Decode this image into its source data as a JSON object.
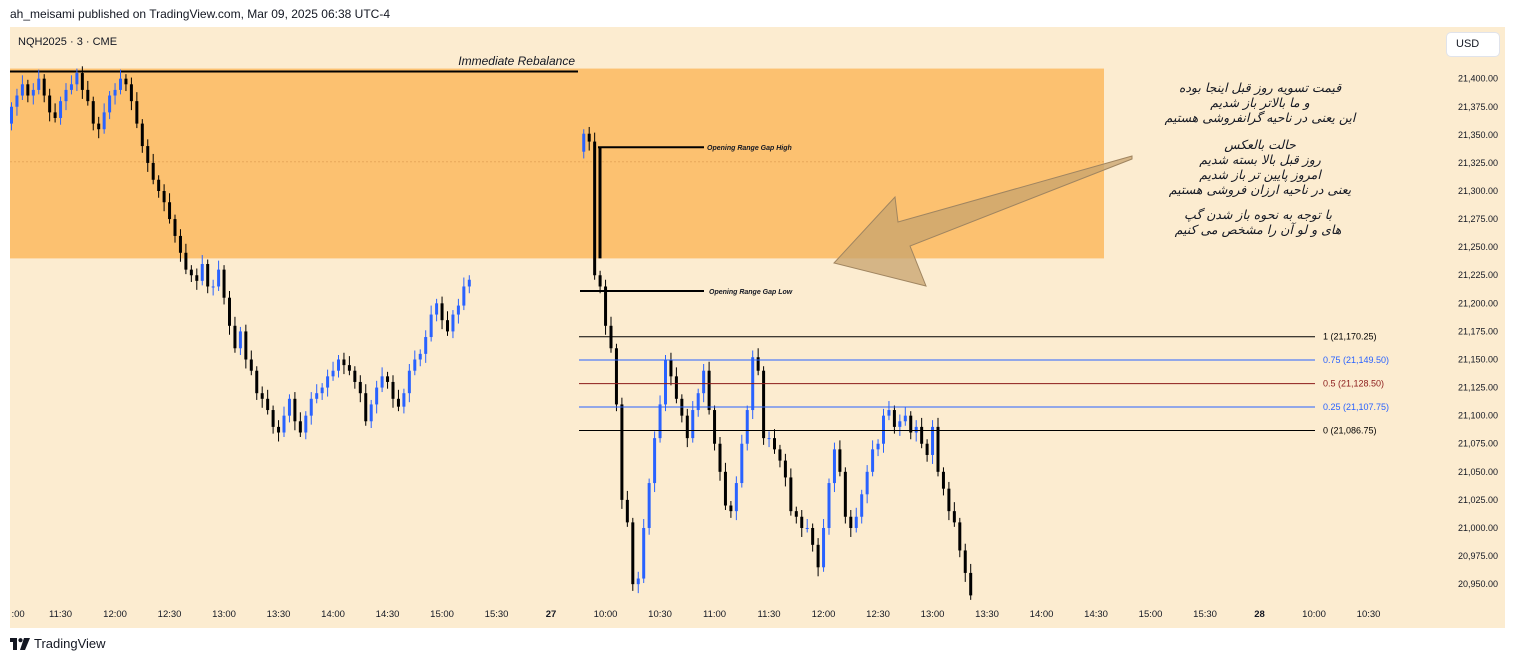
{
  "header": {
    "published_by": "ah_meisami published on TradingView.com, Mar 09, 2025 06:38 UTC-4"
  },
  "symbol": "NQH2025 · 3 · CME",
  "currency": "USD",
  "footer": {
    "brand": "TradingView"
  },
  "colors": {
    "background": "#fcecd0",
    "zone": "#fcc170",
    "up": "#2962ff",
    "down": "#000000",
    "fib_black": "#000000",
    "fib_blue": "#2962ff",
    "fib_red": "#8b1a1a",
    "arrow": "#c8a36d"
  },
  "notes": {
    "block1": [
      "قیمت تسویه روز قبل اینجا بوده",
      "و ما بالاتر باز شدیم",
      "این یعنی در ناحیه گرانفروشی هستیم"
    ],
    "block2": [
      "حالت بالعکس",
      "روز قبل بالا بسته شدیم",
      "امروز پایین تر باز شدیم",
      "یعنی در ناحیه ارزان فروشی هستیم"
    ],
    "block3": [
      "با توجه به نحوه باز شدن گپ",
      "های و لو آن را مشخص می کنیم"
    ]
  },
  "chart_data": {
    "type": "candlestick",
    "timeframe": "3",
    "y_axis": {
      "ticks": [
        21400,
        21375,
        21350,
        21325,
        21300,
        21275,
        21250,
        21225,
        21200,
        21175,
        21150,
        21125,
        21100,
        21075,
        21050,
        21025,
        21000,
        20975,
        20950
      ],
      "tick_labels": [
        "21,400.00",
        "21,375.00",
        "21,350.00",
        "21,325.00",
        "21,300.00",
        "21,275.00",
        "21,250.00",
        "21,225.00",
        "21,200.00",
        "21,175.00",
        "21,150.00",
        "21,125.00",
        "21,100.00",
        "21,075.00",
        "21,050.00",
        "21,025.00",
        "21,000.00",
        "20,975.00",
        "20,950.00"
      ],
      "range": [
        20935,
        21446
      ]
    },
    "x_axis": {
      "tick_labels": [
        ":00",
        "11:30",
        "12:00",
        "12:30",
        "13:00",
        "13:30",
        "14:00",
        "14:30",
        "15:00",
        "15:30",
        "27",
        "10:00",
        "10:30",
        "11:00",
        "11:30",
        "12:00",
        "12:30",
        "13:00",
        "13:30",
        "14:00",
        "14:30",
        "15:00",
        "15:30",
        "28",
        "10:00",
        "10:30"
      ],
      "tick_slots": [
        0,
        9,
        19,
        29,
        39,
        49,
        59,
        69,
        79,
        89,
        99,
        109,
        119,
        129,
        139,
        149,
        159,
        169,
        179,
        189,
        199,
        209,
        219,
        229,
        239,
        249
      ]
    },
    "zones": [
      {
        "label": "Immediate Rebalance",
        "top": 21409,
        "bottom": 21240
      }
    ],
    "lines": [
      {
        "label": "Opening Range Gap High",
        "price": 21339
      },
      {
        "label": "Opening Range Gap Low",
        "price": 21211
      }
    ],
    "fib_levels": [
      {
        "label": "1 (21,170.25)",
        "price": 21170.25,
        "color": "black"
      },
      {
        "label": "0.75 (21,149.50)",
        "price": 21149.5,
        "color": "blue"
      },
      {
        "label": "0.5 (21,128.50)",
        "price": 21128.5,
        "color": "red"
      },
      {
        "label": "0.25 (21,107.75)",
        "price": 21107.75,
        "color": "blue"
      },
      {
        "label": "0 (21,086.75)",
        "price": 21086.75,
        "color": "black"
      }
    ],
    "session1_closes": [
      21375,
      21385,
      21395,
      21385,
      21390,
      21400,
      21385,
      21370,
      21365,
      21380,
      21390,
      21395,
      21405,
      21390,
      21380,
      21360,
      21355,
      21370,
      21385,
      21390,
      21400,
      21395,
      21380,
      21360,
      21340,
      21325,
      21310,
      21300,
      21290,
      21275,
      21260,
      21245,
      21230,
      21225,
      21220,
      21235,
      21215,
      21215,
      21230,
      21205,
      21180,
      21160,
      21175,
      21150,
      21140,
      21120,
      21115,
      21105,
      21090,
      21085,
      21100,
      21115,
      21095,
      21085,
      21100,
      21115,
      21120,
      21125,
      21135,
      21140,
      21150,
      21145,
      21140,
      21130,
      21120,
      21095,
      21110,
      21125,
      21135,
      21130,
      21115,
      21108,
      21120,
      21140,
      21150,
      21155,
      21170,
      21190,
      21200,
      21185,
      21175,
      21190,
      21198,
      21215,
      21221
    ],
    "session2_closes": [
      21351,
      21344,
      21225,
      21215,
      21180,
      21160,
      21110,
      21025,
      21005,
      20950,
      20955,
      21000,
      21040,
      21080,
      21110,
      21150,
      21135,
      21115,
      21100,
      21080,
      21105,
      21120,
      21140,
      21105,
      21075,
      21050,
      21020,
      21015,
      21040,
      21075,
      21105,
      21152,
      21140,
      21080,
      21080,
      21070,
      21060,
      21045,
      21015,
      21010,
      21000,
      21000,
      20985,
      20965,
      21000,
      21040,
      21070,
      21050,
      21010,
      21000,
      21010,
      21030,
      21050,
      21070,
      21075,
      21100,
      21105,
      21090,
      21095,
      21100,
      21085,
      21090,
      21075,
      21065,
      21090,
      21050,
      21035,
      21015,
      21005,
      20980,
      20960,
      20940
    ]
  }
}
